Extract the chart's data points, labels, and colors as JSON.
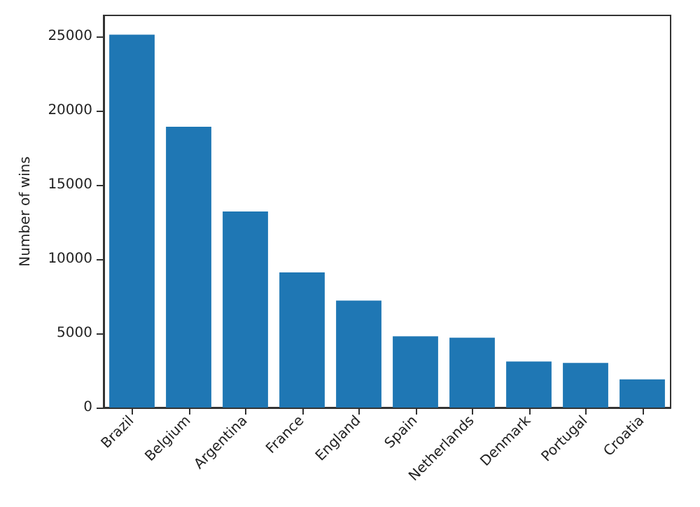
{
  "chart_data": {
    "type": "bar",
    "ylabel": "Number of wins",
    "categories": [
      "Brazil",
      "Belgium",
      "Argentina",
      "France",
      "England",
      "Spain",
      "Netherlands",
      "Denmark",
      "Portugal",
      "Croatia"
    ],
    "values": [
      25100,
      18900,
      13200,
      9100,
      7200,
      4800,
      4700,
      3100,
      3000,
      1900
    ],
    "color": "#1f77b4",
    "ylim": [
      0,
      26400
    ],
    "yticks": [
      0,
      5000,
      10000,
      15000,
      20000,
      25000
    ],
    "grid": false
  }
}
